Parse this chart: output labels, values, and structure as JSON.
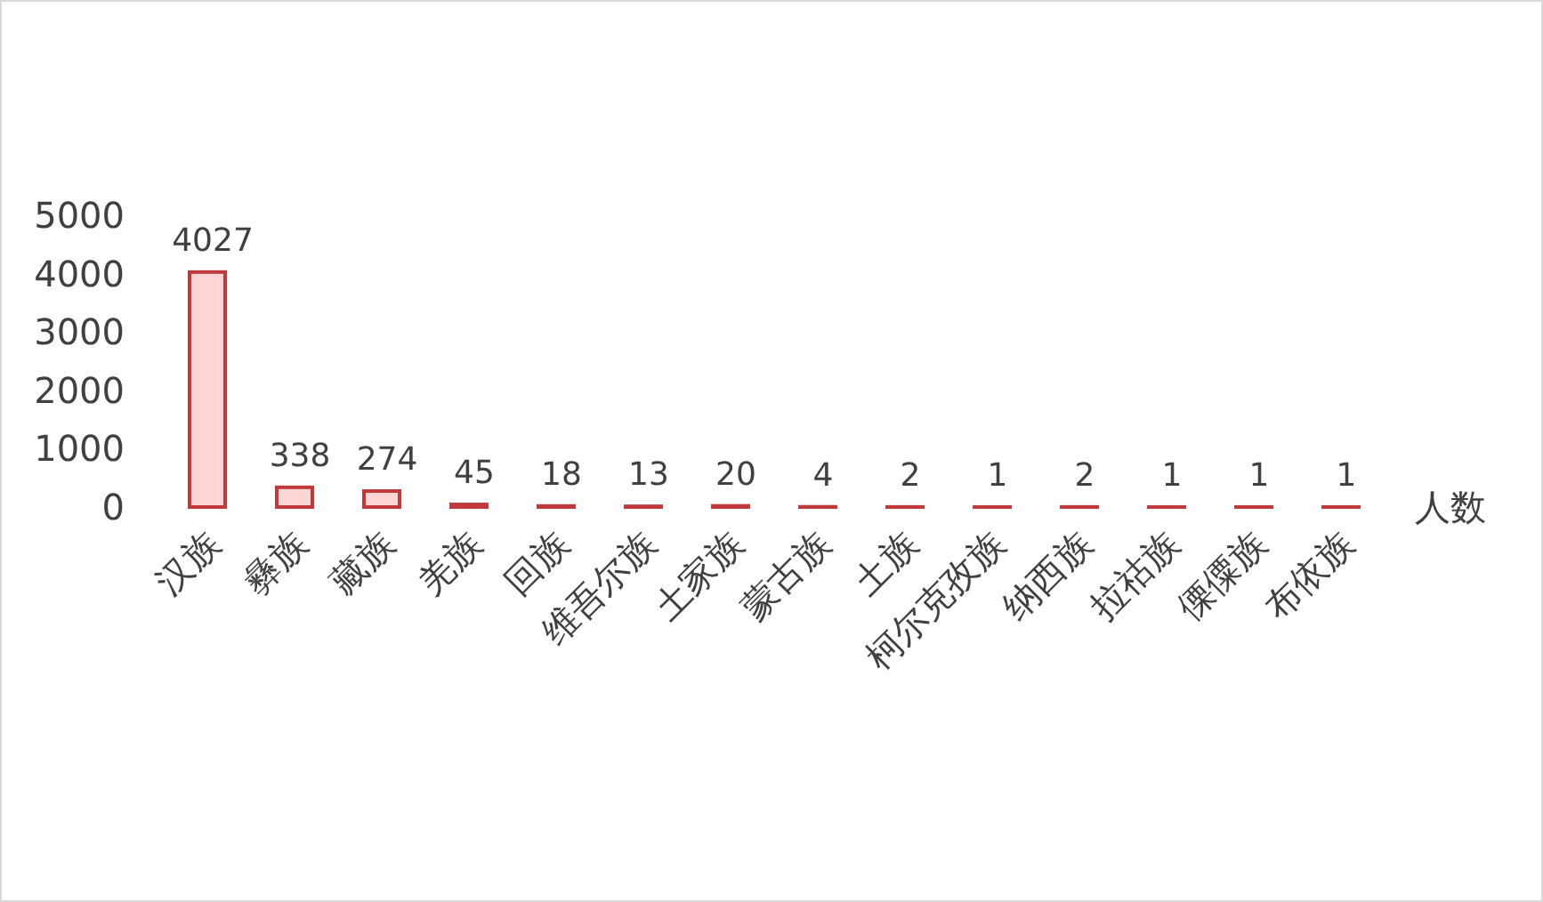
{
  "chart_data": {
    "type": "bar",
    "xlabel": "人数",
    "categories": [
      "汉族",
      "彝族",
      "藏族",
      "羌族",
      "回族",
      "维吾尔族",
      "土家族",
      "蒙古族",
      "土族",
      "柯尔克孜族",
      "纳西族",
      "拉祜族",
      "傈僳族",
      "布依族"
    ],
    "values": [
      4027,
      338,
      274,
      45,
      18,
      13,
      20,
      4,
      2,
      1,
      2,
      1,
      1,
      1
    ],
    "color": "#fdd5d5",
    "ylim": [
      0,
      5000
    ],
    "yticks": [
      0,
      1000,
      2000,
      3000,
      4000,
      5000
    ],
    "data_labels": true
  }
}
